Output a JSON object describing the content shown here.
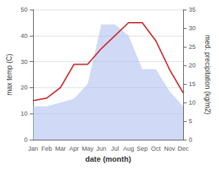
{
  "chart_data": {
    "type": "line",
    "categories": [
      "Jan",
      "Feb",
      "Mar",
      "Apr",
      "May",
      "Jun",
      "Jul",
      "Aug",
      "Sep",
      "Oct",
      "Nov",
      "Dec"
    ],
    "series": [
      {
        "type": "area",
        "axis": "y2",
        "color": "#aabbee",
        "values": [
          9,
          9,
          10,
          11,
          15,
          31,
          31,
          28,
          19,
          19,
          13,
          9
        ]
      },
      {
        "type": "line",
        "color": "#cc3333",
        "values": [
          15,
          16,
          20,
          29,
          29,
          35,
          40,
          45,
          45,
          38,
          27,
          18
        ]
      }
    ],
    "xlabel": "date (month)",
    "ylabel": "max temp (C)",
    "y2label": "med. precipitation (kg/m2)",
    "ylim": [
      0,
      50
    ],
    "yticks": [
      0,
      10,
      20,
      30,
      40,
      50
    ],
    "y2lim": [
      0,
      35
    ],
    "y2ticks": [
      0,
      5,
      10,
      15,
      20,
      25,
      30,
      35
    ],
    "grid": true
  }
}
